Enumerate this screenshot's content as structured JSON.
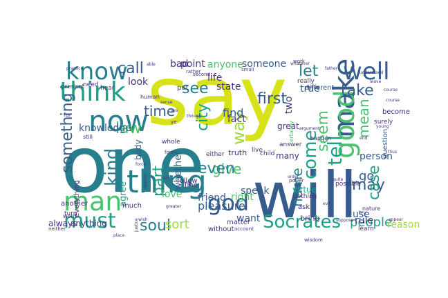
{
  "palette": {
    "yellow": "#d8e219",
    "lime": "#a0da39",
    "green": "#4ac16d",
    "teal": "#1fa187",
    "blue": "#277f8e",
    "indigo": "#365c8d",
    "violet": "#46327e",
    "purple": "#440154"
  },
  "words": [
    {
      "text": "say",
      "color": "yellow"
    },
    {
      "text": "one",
      "color": "blue"
    },
    {
      "text": "will",
      "color": "indigo"
    },
    {
      "text": "think",
      "color": "teal"
    },
    {
      "text": "now",
      "color": "blue"
    },
    {
      "text": "know",
      "color": "blue"
    },
    {
      "text": "man",
      "color": "green"
    },
    {
      "text": "thing",
      "color": "blue"
    },
    {
      "text": "must",
      "color": "teal"
    },
    {
      "text": "make",
      "color": "indigo"
    },
    {
      "text": "good",
      "color": "green"
    },
    {
      "text": "well",
      "color": "indigo"
    },
    {
      "text": "Socrates",
      "color": "teal"
    },
    {
      "text": "way",
      "color": "lime"
    },
    {
      "text": "first",
      "color": "indigo"
    },
    {
      "text": "tell",
      "color": "teal"
    },
    {
      "text": "kind",
      "color": "blue"
    },
    {
      "text": "come",
      "color": "teal"
    },
    {
      "text": "god",
      "color": "indigo"
    },
    {
      "text": "soul",
      "color": "blue"
    },
    {
      "text": "part",
      "color": "teal"
    },
    {
      "text": "people",
      "color": "teal"
    },
    {
      "text": "name",
      "color": "blue"
    },
    {
      "text": "may",
      "color": "indigo"
    },
    {
      "text": "case",
      "color": "teal"
    },
    {
      "text": "go",
      "color": "indigo"
    },
    {
      "text": "see",
      "color": "blue"
    },
    {
      "text": "let",
      "color": "blue"
    },
    {
      "text": "seem",
      "color": "green"
    },
    {
      "text": "mean",
      "color": "green"
    },
    {
      "text": "take",
      "color": "indigo"
    },
    {
      "text": "time",
      "color": "indigo"
    },
    {
      "text": "law",
      "color": "green"
    },
    {
      "text": "love",
      "color": "green"
    },
    {
      "text": "give",
      "color": "green"
    },
    {
      "text": "even",
      "color": "blue"
    },
    {
      "text": "call",
      "color": "indigo"
    },
    {
      "text": "city",
      "color": "teal"
    },
    {
      "text": "something",
      "color": "indigo"
    },
    {
      "text": "sort",
      "color": "lime"
    },
    {
      "text": "whether",
      "color": "indigo"
    },
    {
      "text": "friend",
      "color": "indigo"
    },
    {
      "text": "pleasure",
      "color": "indigo"
    },
    {
      "text": "find",
      "color": "indigo"
    },
    {
      "text": "state",
      "color": "violet"
    },
    {
      "text": "bad",
      "color": "violet"
    },
    {
      "text": "point",
      "color": "violet"
    },
    {
      "text": "look",
      "color": "violet"
    },
    {
      "text": "life",
      "color": "violet"
    },
    {
      "text": "anyone",
      "color": "green"
    },
    {
      "text": "someone",
      "color": "indigo"
    },
    {
      "text": "knowledge",
      "color": "indigo"
    },
    {
      "text": "true",
      "color": "indigo"
    },
    {
      "text": "two",
      "color": "violet"
    },
    {
      "text": "fact",
      "color": "violet"
    },
    {
      "text": "speak",
      "color": "indigo"
    },
    {
      "text": "right",
      "color": "green"
    },
    {
      "text": "person",
      "color": "indigo"
    },
    {
      "text": "use",
      "color": "indigo"
    },
    {
      "text": "rule",
      "color": "violet"
    },
    {
      "text": "great",
      "color": "violet"
    },
    {
      "text": "many",
      "color": "violet"
    },
    {
      "text": "want",
      "color": "indigo"
    },
    {
      "text": "agree",
      "color": "teal"
    },
    {
      "text": "always",
      "color": "violet"
    },
    {
      "text": "anything",
      "color": "violet"
    },
    {
      "text": "without",
      "color": "violet"
    },
    {
      "text": "reason",
      "color": "lime"
    },
    {
      "text": "virtue",
      "color": "teal"
    },
    {
      "text": "truth",
      "color": "violet"
    },
    {
      "text": "different",
      "color": "indigo"
    },
    {
      "text": "really",
      "color": "violet"
    },
    {
      "text": "become",
      "color": "violet"
    },
    {
      "text": "question",
      "color": "indigo"
    },
    {
      "text": "possible",
      "color": "violet"
    },
    {
      "text": "ask",
      "color": "violet"
    },
    {
      "text": "bring",
      "color": "violet"
    },
    {
      "text": "matter",
      "color": "violet"
    },
    {
      "text": "body",
      "color": "indigo"
    },
    {
      "text": "follow",
      "color": "violet"
    },
    {
      "text": "another",
      "color": "violet"
    },
    {
      "text": "everything",
      "color": "violet"
    },
    {
      "text": "much",
      "color": "violet"
    },
    {
      "text": "fine",
      "color": "violet"
    },
    {
      "text": "either",
      "color": "violet"
    },
    {
      "text": "live",
      "color": "violet"
    },
    {
      "text": "whole",
      "color": "violet"
    },
    {
      "text": "child",
      "color": "violet"
    },
    {
      "text": "answer",
      "color": "violet"
    },
    {
      "text": "put",
      "color": "violet"
    },
    {
      "text": "need",
      "color": "violet"
    },
    {
      "text": "hear",
      "color": "violet"
    },
    {
      "text": "present",
      "color": "violet"
    },
    {
      "text": "turn",
      "color": "violet"
    },
    {
      "text": "word",
      "color": "violet"
    },
    {
      "text": "human",
      "color": "violet"
    },
    {
      "text": "still",
      "color": "violet"
    },
    {
      "text": "far",
      "color": "violet"
    },
    {
      "text": "form",
      "color": "violet"
    },
    {
      "text": "learn",
      "color": "violet"
    },
    {
      "text": "nothing",
      "color": "violet"
    },
    {
      "text": "wisdom",
      "color": "violet"
    },
    {
      "text": "nature",
      "color": "violet"
    },
    {
      "text": "certainly",
      "color": "green"
    },
    {
      "text": "happen",
      "color": "violet"
    },
    {
      "text": "surely",
      "color": "violet"
    },
    {
      "text": "power",
      "color": "violet"
    },
    {
      "text": "account",
      "color": "violet"
    },
    {
      "text": "neither",
      "color": "violet"
    },
    {
      "text": "rather",
      "color": "violet"
    },
    {
      "text": "second",
      "color": "violet"
    },
    {
      "text": "small",
      "color": "violet"
    },
    {
      "text": "work",
      "color": "violet"
    },
    {
      "text": "practice",
      "color": "violet"
    },
    {
      "text": "place",
      "color": "violet"
    },
    {
      "text": "opinion",
      "color": "violet"
    },
    {
      "text": "justice",
      "color": "violet"
    },
    {
      "text": "argument",
      "color": "violet"
    },
    {
      "text": "try",
      "color": "violet"
    },
    {
      "text": "leave",
      "color": "violet"
    },
    {
      "text": "thus",
      "color": "violet"
    },
    {
      "text": "quite",
      "color": "violet"
    },
    {
      "text": "end",
      "color": "violet"
    },
    {
      "text": "ye",
      "color": "violet"
    },
    {
      "text": "course",
      "color": "violet"
    },
    {
      "text": "father",
      "color": "violet"
    },
    {
      "text": "force",
      "color": "violet"
    },
    {
      "text": "wish",
      "color": "violet"
    },
    {
      "text": "yes",
      "color": "violet"
    },
    {
      "text": "sense",
      "color": "violet"
    },
    {
      "text": "though",
      "color": "violet"
    },
    {
      "text": "art",
      "color": "violet"
    },
    {
      "text": "whatever",
      "color": "violet"
    },
    {
      "text": "understand",
      "color": "violet"
    },
    {
      "text": "greater",
      "color": "violet"
    },
    {
      "text": "appear",
      "color": "violet"
    },
    {
      "text": "course",
      "color": "violet"
    },
    {
      "text": "suppose",
      "color": "violet"
    },
    {
      "text": "evil",
      "color": "violet"
    },
    {
      "text": "better",
      "color": "violet"
    },
    {
      "text": "young",
      "color": "violet"
    },
    {
      "text": "able",
      "color": "violet"
    },
    {
      "text": "order",
      "color": "violet"
    }
  ]
}
